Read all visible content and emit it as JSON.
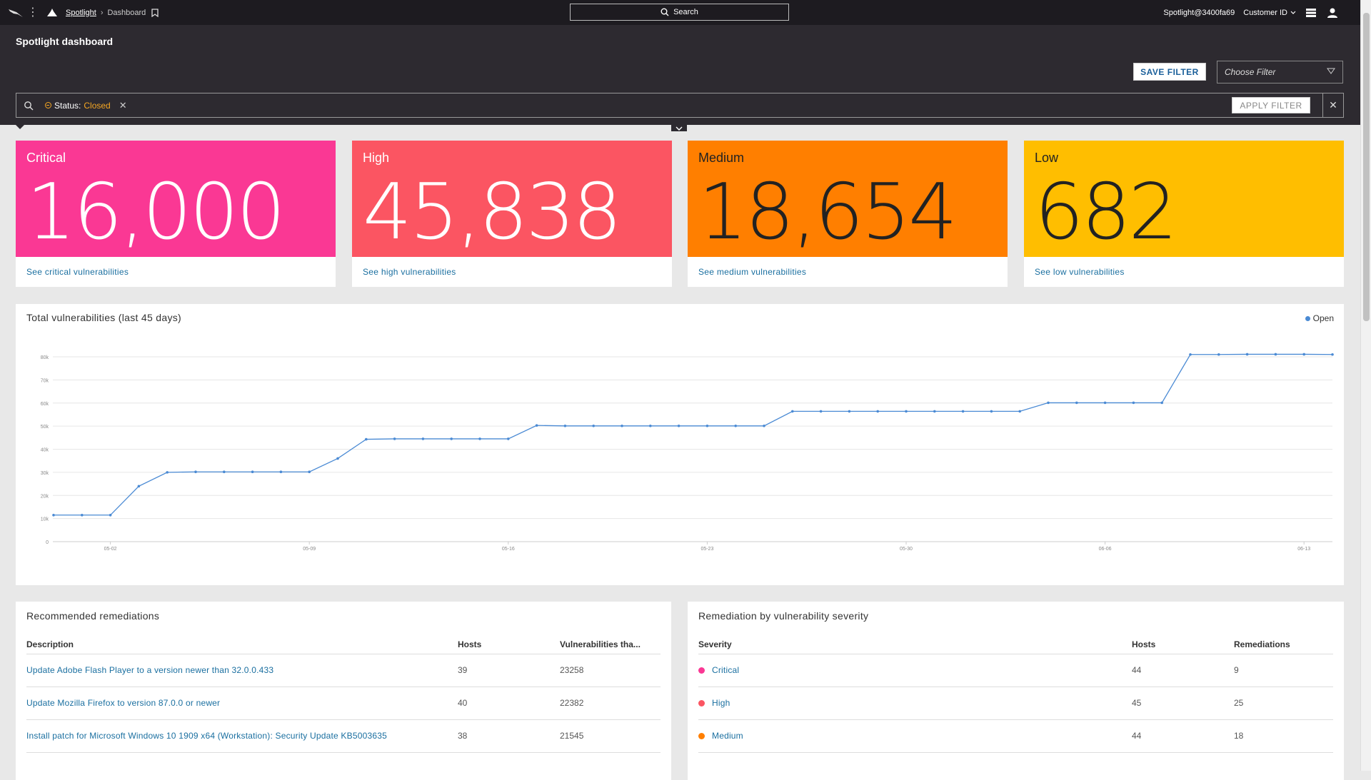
{
  "topbar": {
    "app_name": "Spotlight",
    "page_name": "Dashboard",
    "search_label": "Search",
    "user": "Spotlight@3400fa69",
    "customer_label": "Customer ID"
  },
  "header": {
    "title": "Spotlight dashboard",
    "save_filter_label": "SAVE FILTER",
    "choose_filter_placeholder": "Choose Filter",
    "filter_chip": {
      "key": "Status:",
      "value": "Closed"
    },
    "apply_filter_label": "APPLY FILTER"
  },
  "severity_cards": [
    {
      "label": "Critical",
      "value": "16,000",
      "link": "See critical vulnerabilities",
      "color": "#fa3894"
    },
    {
      "label": "High",
      "value": "45,838",
      "link": "See high vulnerabilities",
      "color": "#fb5562"
    },
    {
      "label": "Medium",
      "value": "18,654",
      "link": "See medium vulnerabilities",
      "color": "#ff7f00"
    },
    {
      "label": "Low",
      "value": "682",
      "link": "See low vulnerabilities",
      "color": "#ffbe00"
    }
  ],
  "chart_panel": {
    "title": "Total vulnerabilities (last 45 days)",
    "legend": "Open"
  },
  "chart_data": {
    "type": "line",
    "title": "Total vulnerabilities (last 45 days)",
    "x_tick_labels": [
      "05-02",
      "05-09",
      "05-16",
      "05-23",
      "05-30",
      "06-06",
      "06-13"
    ],
    "x_tick_index": [
      2,
      9,
      16,
      23,
      30,
      37,
      44
    ],
    "y_tick_labels": [
      "0",
      "10k",
      "20k",
      "30k",
      "40k",
      "50k",
      "60k",
      "70k",
      "80k"
    ],
    "ylim": [
      0,
      80000
    ],
    "grid": true,
    "legend_position": "top-right",
    "series": [
      {
        "name": "Open",
        "color": "#4a8ad4",
        "values": [
          11500,
          11500,
          11500,
          24000,
          30000,
          30200,
          30200,
          30200,
          30200,
          30200,
          36000,
          44300,
          44500,
          44500,
          44500,
          44500,
          44500,
          50300,
          50100,
          50100,
          50100,
          50100,
          50100,
          50100,
          50100,
          50100,
          56400,
          56400,
          56400,
          56400,
          56400,
          56400,
          56400,
          56400,
          56400,
          60100,
          60100,
          60100,
          60100,
          60100,
          81000,
          81000,
          81100,
          81100,
          81100,
          81000
        ]
      }
    ]
  },
  "remediations": {
    "title": "Recommended remediations",
    "columns": [
      "Description",
      "Hosts",
      "Vulnerabilities tha..."
    ],
    "rows": [
      {
        "description": "Update Adobe Flash Player to a version newer than 32.0.0.433",
        "hosts": "39",
        "vulns": "23258"
      },
      {
        "description": "Update Mozilla Firefox to version 87.0.0 or newer",
        "hosts": "40",
        "vulns": "22382"
      },
      {
        "description": "Install patch for Microsoft Windows 10 1909 x64 (Workstation): Security Update KB5003635",
        "hosts": "38",
        "vulns": "21545"
      }
    ]
  },
  "by_severity": {
    "title": "Remediation by vulnerability severity",
    "columns": [
      "Severity",
      "Hosts",
      "Remediations"
    ],
    "rows": [
      {
        "severity": "Critical",
        "color": "#fa3894",
        "hosts": "44",
        "remediations": "9"
      },
      {
        "severity": "High",
        "color": "#fb5562",
        "hosts": "45",
        "remediations": "25"
      },
      {
        "severity": "Medium",
        "color": "#ff7f00",
        "hosts": "44",
        "remediations": "18"
      }
    ]
  }
}
